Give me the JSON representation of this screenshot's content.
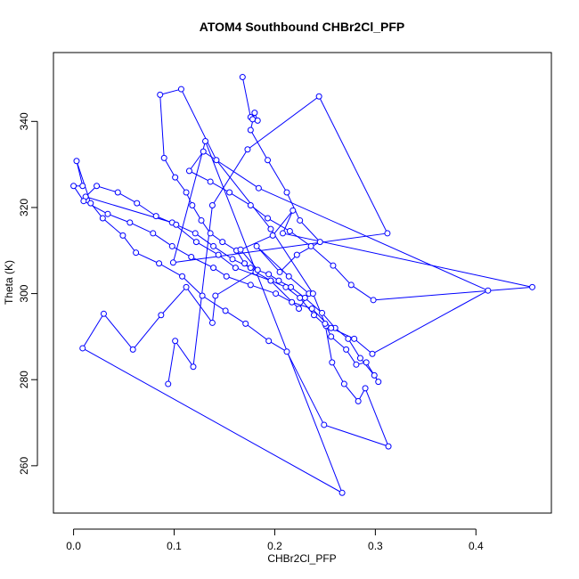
{
  "chart_data": {
    "type": "line",
    "title": "ATOM4 Southbound CHBr2Cl_PFP",
    "xlabel": "CHBr2Cl_PFP",
    "ylabel": "Theta (K)",
    "xlim": [
      -0.02,
      0.475
    ],
    "ylim": [
      249,
      356
    ],
    "x_ticks": [
      0.0,
      0.1,
      0.2,
      0.3,
      0.4
    ],
    "x_tick_labels": [
      "0.0",
      "0.1",
      "0.2",
      "0.3",
      "0.4"
    ],
    "y_ticks": [
      260,
      280,
      300,
      320,
      340
    ],
    "y_tick_labels": [
      "260",
      "280",
      "300",
      "320",
      "340"
    ],
    "grid": false,
    "line_color": "#0000ff",
    "marker": "open-circle",
    "series": [
      {
        "x": [
          0.168,
          0.176,
          0.178,
          0.183,
          0.18,
          0.176,
          0.193,
          0.212,
          0.225,
          0.245,
          0.222,
          0.205,
          0.182,
          0.214,
          0.234,
          0.224,
          0.196,
          0.161,
          0.144,
          0.122,
          0.098,
          0.012,
          0.023,
          0.044,
          0.063,
          0.082,
          0.102,
          0.121,
          0.139,
          0.158,
          0.176,
          0.194,
          0.204,
          0.216,
          0.23,
          0.247,
          0.26,
          0.273,
          0.285,
          0.299,
          0.303,
          0.291,
          0.281,
          0.271,
          0.256,
          0.251,
          0.239,
          0.225,
          0.211,
          0.196,
          0.181,
          0.17,
          0.162,
          0.148,
          0.136,
          0.127,
          0.118,
          0.112,
          0.101,
          0.09,
          0.086,
          0.107,
          0.142,
          0.196,
          0.238,
          0.25,
          0.257,
          0.269,
          0.283,
          0.29,
          0.313,
          0.249,
          0.212,
          0.194,
          0.171,
          0.151,
          0.128,
          0.108,
          0.085,
          0.062,
          0.049,
          0.029,
          0.017,
          0.003,
          0.009,
          0.0,
          0.01,
          0.034,
          0.056,
          0.079,
          0.098,
          0.117,
          0.139,
          0.152,
          0.176,
          0.201,
          0.217,
          0.237,
          0.256,
          0.279,
          0.297,
          0.412,
          0.184,
          0.129,
          0.115,
          0.136,
          0.155,
          0.176,
          0.193,
          0.215,
          0.236,
          0.258,
          0.276,
          0.298,
          0.456,
          0.208,
          0.218,
          0.198,
          0.166,
          0.183,
          0.141,
          0.138,
          0.112,
          0.087,
          0.059,
          0.03,
          0.009,
          0.267,
          0.131,
          0.099,
          0.312,
          0.244,
          0.173,
          0.138,
          0.119,
          0.101,
          0.094
        ],
        "y": [
          350.3,
          341.0,
          340.5,
          340.2,
          342.0,
          338.0,
          331.0,
          323.5,
          317.0,
          312.0,
          309.0,
          305.0,
          311.0,
          304.0,
          300.0,
          296.5,
          303.0,
          306.0,
          309.0,
          312.0,
          316.5,
          322.5,
          325.0,
          323.5,
          321.0,
          318.0,
          316.0,
          314.0,
          311.0,
          308.0,
          306.0,
          304.5,
          303.0,
          301.5,
          299.0,
          295.5,
          292.0,
          289.5,
          285.0,
          281.0,
          279.5,
          284.0,
          283.5,
          287.0,
          290.0,
          292.5,
          295.0,
          299.0,
          301.5,
          303.0,
          305.0,
          307.0,
          310.0,
          312.0,
          314.0,
          317.0,
          320.5,
          323.5,
          327.0,
          331.5,
          346.2,
          347.5,
          331.0,
          315.0,
          300.0,
          293.0,
          284.0,
          279.0,
          275.0,
          278.0,
          264.5,
          269.5,
          286.5,
          289.0,
          293.0,
          296.0,
          299.5,
          304.0,
          307.0,
          309.5,
          313.5,
          317.5,
          321.0,
          330.8,
          325.0,
          325.0,
          321.5,
          318.5,
          316.5,
          314.0,
          311.0,
          308.5,
          306.0,
          304.0,
          302.0,
          300.0,
          298.0,
          296.5,
          292.0,
          289.5,
          286.0,
          300.7,
          324.5,
          333.0,
          328.5,
          326.0,
          323.5,
          320.5,
          317.5,
          314.5,
          311.0,
          306.5,
          302.0,
          298.5,
          301.5,
          314.0,
          319.3,
          313.5,
          310.2,
          305.5,
          299.5,
          293.2,
          301.5,
          295.0,
          287.0,
          295.3,
          287.3,
          253.7,
          335.4,
          307.2,
          314.0,
          345.8,
          333.5,
          320.5,
          283.0,
          289.0,
          279.0
        ]
      }
    ]
  }
}
